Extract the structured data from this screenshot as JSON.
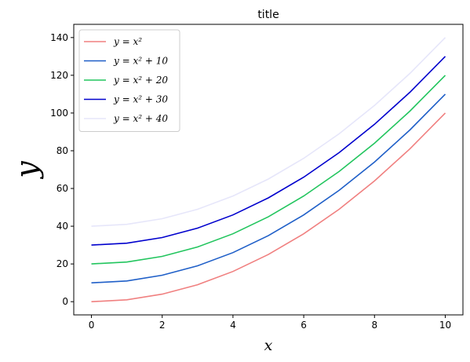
{
  "chart_data": {
    "type": "line",
    "title": "title",
    "xlabel": "x",
    "ylabel": "y",
    "x": [
      0,
      1,
      2,
      3,
      4,
      5,
      6,
      7,
      8,
      9,
      10
    ],
    "xlim": [
      -0.5,
      10.5
    ],
    "ylim": [
      -7,
      147
    ],
    "xticks": [
      0,
      2,
      4,
      6,
      8,
      10
    ],
    "yticks": [
      0,
      20,
      40,
      60,
      80,
      100,
      120,
      140
    ],
    "grid": false,
    "legend_position": "top-left",
    "series": [
      {
        "name": "y = x²",
        "color": "#f08080",
        "values": [
          0,
          1,
          4,
          9,
          16,
          25,
          36,
          49,
          64,
          81,
          100
        ]
      },
      {
        "name": "y = x² + 10",
        "color": "#1f5fc8",
        "values": [
          10,
          11,
          14,
          19,
          26,
          35,
          46,
          59,
          74,
          91,
          110
        ]
      },
      {
        "name": "y = x² + 20",
        "color": "#22c55e",
        "values": [
          20,
          21,
          24,
          29,
          36,
          45,
          56,
          69,
          84,
          101,
          120
        ]
      },
      {
        "name": "y = x² + 30",
        "color": "#0000cd",
        "values": [
          30,
          31,
          34,
          39,
          46,
          55,
          66,
          79,
          94,
          111,
          130
        ]
      },
      {
        "name": "y = x² + 40",
        "color": "#e6e6fa",
        "values": [
          40,
          41,
          44,
          49,
          56,
          65,
          76,
          89,
          104,
          121,
          140
        ]
      }
    ]
  }
}
